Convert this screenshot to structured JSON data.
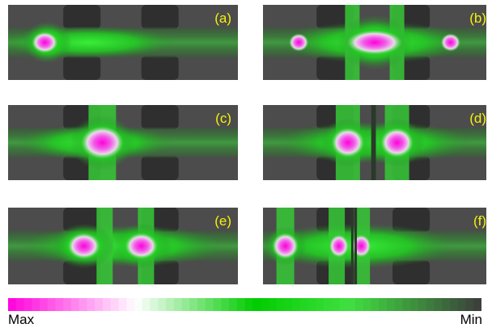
{
  "panels": [
    {
      "label": "(a)",
      "mode": "single_left"
    },
    {
      "label": "(b)",
      "mode": "three_lobe"
    },
    {
      "label": "(c)",
      "mode": "single_center"
    },
    {
      "label": "(d)",
      "mode": "split_pair"
    },
    {
      "label": "(e)",
      "mode": "double_center"
    },
    {
      "label": "(f)",
      "mode": "split_pair_left"
    }
  ],
  "colorbar": {
    "max_label": "Max",
    "min_label": "Min",
    "colors": [
      "#ff00dc",
      "#ffffff",
      "#00cc00",
      "#40e040",
      "#3c3c3c"
    ]
  }
}
